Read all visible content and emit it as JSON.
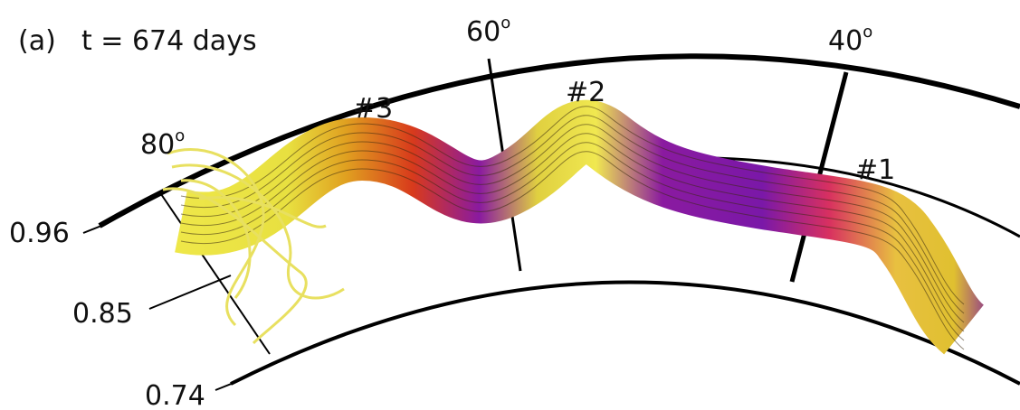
{
  "panel": "(a)",
  "time": "t = 674 days",
  "latitudes": [
    {
      "text": "80",
      "sup": "o"
    },
    {
      "text": "60",
      "sup": "o"
    },
    {
      "text": "40",
      "sup": "o"
    }
  ],
  "radii": [
    "0.96",
    "0.85",
    "0.74"
  ],
  "tubes": [
    "#3",
    "#2",
    "#1"
  ]
}
